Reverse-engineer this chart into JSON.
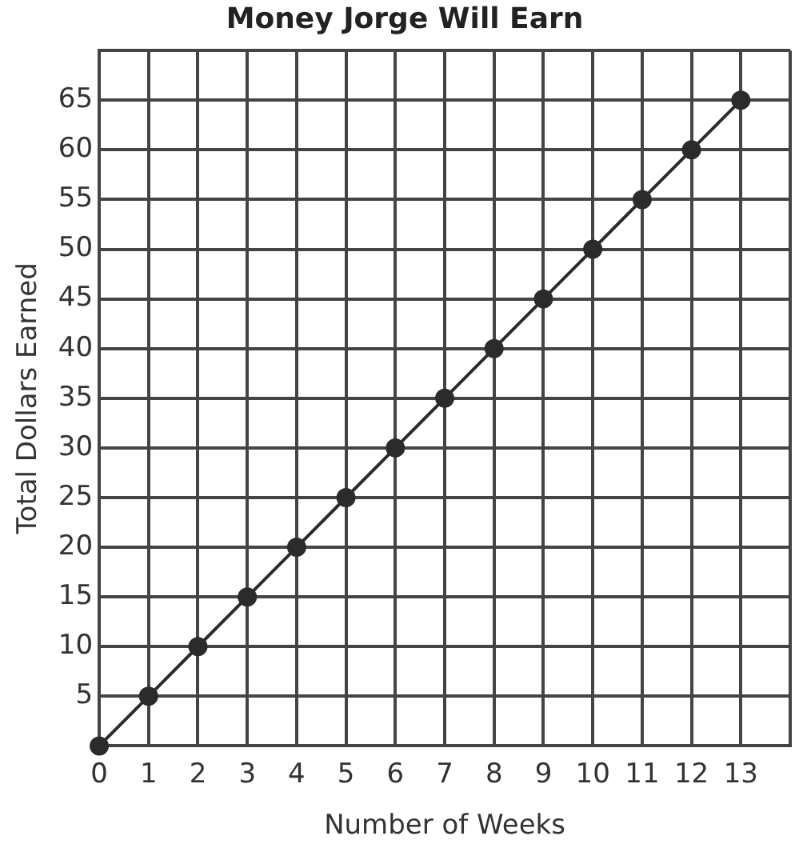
{
  "chart_data": {
    "type": "line",
    "title": "Money Jorge Will Earn",
    "xlabel": "Number of Weeks",
    "ylabel": "Total Dollars Earned",
    "x": [
      0,
      1,
      2,
      3,
      4,
      5,
      6,
      7,
      8,
      9,
      10,
      11,
      12,
      13
    ],
    "series": [
      {
        "color": "#2b2b2b",
        "values": [
          0,
          5,
          10,
          15,
          20,
          25,
          30,
          35,
          40,
          45,
          50,
          55,
          60,
          65
        ]
      }
    ],
    "xlim": [
      0,
      14
    ],
    "ylim": [
      0,
      70
    ],
    "xticks": [
      0,
      1,
      2,
      3,
      4,
      5,
      6,
      7,
      8,
      9,
      10,
      11,
      12,
      13,
      {
        "value": 14,
        "label": null
      }
    ],
    "yticks": [
      {
        "value": 0,
        "label": null
      },
      5,
      10,
      15,
      20,
      25,
      30,
      35,
      40,
      45,
      50,
      55,
      60,
      65,
      {
        "value": 70,
        "label": null
      }
    ],
    "grid": true,
    "legend": false,
    "marker": "circle",
    "line_style": "solid"
  }
}
